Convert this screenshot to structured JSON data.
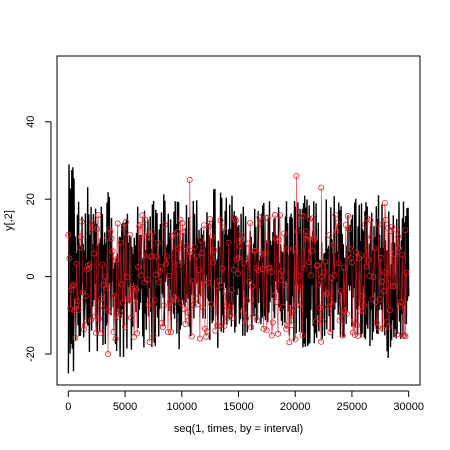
{
  "chart_data": {
    "type": "line",
    "title": "",
    "xlabel": "seq(1, times, by = interval)",
    "ylabel": "y[,2]",
    "xlim": [
      -1000,
      31000
    ],
    "ylim": [
      -28,
      57
    ],
    "xticks": [
      0,
      5000,
      10000,
      15000,
      20000,
      25000,
      30000
    ],
    "xtick_labels": [
      "0",
      "5000",
      "10000",
      "15000",
      "20000",
      "25000",
      "30000"
    ],
    "yticks": [
      -20,
      0,
      20,
      40
    ],
    "ytick_labels": [
      "-20",
      "0",
      "20",
      "40"
    ],
    "grid": false,
    "legend": "none",
    "series": [
      {
        "style": "line",
        "color": "#000000",
        "x_start": 1,
        "x_end": 30000,
        "n_points": 600,
        "approx_min": -25,
        "approx_max": 29,
        "x": [
          1,
          1001,
          2001,
          3001,
          4001,
          5001,
          6001,
          7001,
          8001,
          9001,
          10001,
          11001,
          12001,
          13001,
          14001,
          15001,
          16001,
          17001,
          18001,
          19001,
          20001,
          21001,
          22001,
          23001,
          24001,
          25001,
          26001,
          27001,
          28001,
          29001
        ],
        "y_low": [
          -25,
          -20,
          -21,
          -18,
          -22,
          -19,
          -21,
          -19,
          -17,
          -19,
          -18,
          -16,
          -17,
          -19,
          -16,
          -18,
          -17,
          -20,
          -16,
          -17,
          -19,
          -18,
          -17,
          -19,
          -17,
          -18,
          -19,
          -17,
          -22,
          -19
        ],
        "y_high": [
          29,
          24,
          24,
          23,
          21,
          21,
          22,
          21,
          22,
          20,
          20,
          21,
          23,
          22,
          21,
          20,
          21,
          20,
          19,
          21,
          22,
          21,
          20,
          21,
          19,
          21,
          20,
          22,
          18,
          20
        ]
      },
      {
        "style": "points",
        "color": "#dd1f27",
        "approx_min": -20,
        "approx_max": 26,
        "notable_points": [
          [
            3500,
            -20
          ],
          [
            10700,
            25
          ],
          [
            20100,
            26
          ],
          [
            22300,
            23
          ],
          [
            27900,
            19
          ],
          [
            29700,
            12
          ]
        ]
      }
    ]
  }
}
